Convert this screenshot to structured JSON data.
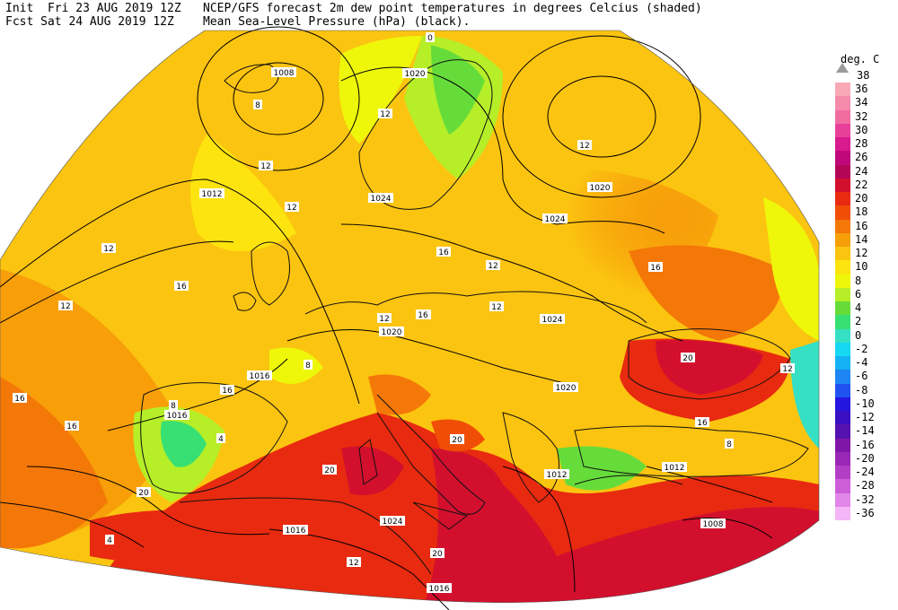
{
  "header": {
    "init_line": "Init  Fri 23 AUG 2019 12Z",
    "fcst_line": "Fcst Sat 24 AUG 2019 12Z",
    "title_line1": "NCEP/GFS forecast 2m dew point temperatures in degrees Celcius (shaded)",
    "title_line2": "Mean Sea-Level Pressure (hPa) (black)."
  },
  "legend": {
    "unit": "deg. C",
    "top_label": "38",
    "levels": [
      {
        "label": "36",
        "color": "#f9a8b6"
      },
      {
        "label": "34",
        "color": "#f58aaa"
      },
      {
        "label": "32",
        "color": "#f06ca0"
      },
      {
        "label": "30",
        "color": "#e8409a"
      },
      {
        "label": "28",
        "color": "#d81a8e"
      },
      {
        "label": "26",
        "color": "#c0087a"
      },
      {
        "label": "24",
        "color": "#b40656"
      },
      {
        "label": "22",
        "color": "#d2102e"
      },
      {
        "label": "20",
        "color": "#e82a10"
      },
      {
        "label": "18",
        "color": "#f04e06"
      },
      {
        "label": "16",
        "color": "#f47808"
      },
      {
        "label": "14",
        "color": "#f79e08"
      },
      {
        "label": "12",
        "color": "#fbc410"
      },
      {
        "label": "10",
        "color": "#fde40e"
      },
      {
        "label": "8",
        "color": "#eef70a"
      },
      {
        "label": "6",
        "color": "#b6ee28"
      },
      {
        "label": "4",
        "color": "#66dc3a"
      },
      {
        "label": "2",
        "color": "#38e074"
      },
      {
        "label": "0",
        "color": "#36e0c4"
      },
      {
        "label": "-2",
        "color": "#16d8f2"
      },
      {
        "label": "-4",
        "color": "#14b2f4"
      },
      {
        "label": "-6",
        "color": "#1e86f4"
      },
      {
        "label": "-8",
        "color": "#2052f0"
      },
      {
        "label": "-10",
        "color": "#2416de"
      },
      {
        "label": "-12",
        "color": "#3a10c2"
      },
      {
        "label": "-14",
        "color": "#5612b0"
      },
      {
        "label": "-16",
        "color": "#8016a8"
      },
      {
        "label": "-20",
        "color": "#9a28b6"
      },
      {
        "label": "-24",
        "color": "#b23ec6"
      },
      {
        "label": "-28",
        "color": "#cc5ed8"
      },
      {
        "label": "-32",
        "color": "#e286ea"
      },
      {
        "label": "-36",
        "color": "#f4b6f6"
      }
    ]
  },
  "isobars": [
    {
      "label": "1008",
      "unit": "hPa"
    },
    {
      "label": "1012",
      "unit": "hPa"
    },
    {
      "label": "1024",
      "unit": "hPa"
    },
    {
      "label": "1020",
      "unit": "hPa"
    },
    {
      "label": "1024",
      "unit": "hPa"
    },
    {
      "label": "1024",
      "unit": "hPa"
    },
    {
      "label": "1020",
      "unit": "hPa"
    },
    {
      "label": "1016",
      "unit": "hPa"
    },
    {
      "label": "1020",
      "unit": "hPa"
    },
    {
      "label": "1016",
      "unit": "hPa"
    },
    {
      "label": "1012",
      "unit": "hPa"
    },
    {
      "label": "1012",
      "unit": "hPa"
    },
    {
      "label": "1008",
      "unit": "hPa"
    },
    {
      "label": "1016",
      "unit": "hPa"
    },
    {
      "label": "1016",
      "unit": "hPa"
    },
    {
      "label": "1020",
      "unit": "hPa"
    },
    {
      "label": "1024",
      "unit": "hPa"
    }
  ],
  "dewpoint_labels": [
    "0",
    "8",
    "12",
    "12",
    "12",
    "12",
    "16",
    "12",
    "16",
    "20",
    "16",
    "16",
    "12",
    "12",
    "16",
    "20",
    "8",
    "4",
    "16",
    "20",
    "20",
    "16",
    "12",
    "12",
    "8",
    "4",
    "16",
    "20",
    "12",
    "8",
    "12",
    "16"
  ]
}
